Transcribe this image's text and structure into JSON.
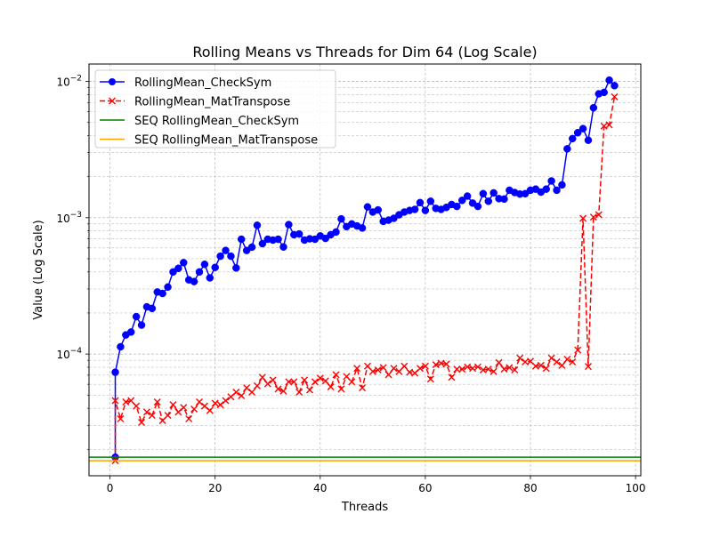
{
  "colors": {
    "checksym": "#0000ff",
    "mattranspose": "#ff0000",
    "seq_checksym": "#008000",
    "seq_mattranspose": "#ffa500",
    "grid": "#b0b0b0"
  },
  "chart_data": {
    "type": "line",
    "title": "Rolling Means vs Threads for Dim 64 (Log Scale)",
    "xlabel": "Threads",
    "ylabel": "Value (Log Scale)",
    "xlim": [
      -4,
      101
    ],
    "ylim": [
      1.28e-05,
      0.0134
    ],
    "yscale": "log",
    "grid": true,
    "legend_position": "upper-left",
    "x_ticks": [
      {
        "value": 0,
        "label": "0"
      },
      {
        "value": 20,
        "label": "20"
      },
      {
        "value": 40,
        "label": "40"
      },
      {
        "value": 60,
        "label": "60"
      },
      {
        "value": 80,
        "label": "80"
      },
      {
        "value": 100,
        "label": "100"
      }
    ],
    "y_ticks": [
      {
        "value": 0.0001,
        "base": "10",
        "exp": "−4"
      },
      {
        "value": 0.001,
        "base": "10",
        "exp": "−3"
      },
      {
        "value": 0.01,
        "base": "10",
        "exp": "−2"
      }
    ],
    "series": [
      {
        "name": "RollingMean_CheckSym",
        "color_key": "checksym",
        "style": "solid",
        "marker": "circle",
        "x": [
          1,
          1,
          2,
          3,
          4,
          5,
          6,
          7,
          8,
          9,
          10,
          11,
          12,
          13,
          14,
          15,
          16,
          17,
          18,
          19,
          20,
          21,
          22,
          23,
          24,
          25,
          26,
          27,
          28,
          29,
          30,
          31,
          32,
          33,
          34,
          35,
          36,
          37,
          38,
          39,
          40,
          41,
          42,
          43,
          44,
          45,
          46,
          47,
          48,
          49,
          50,
          51,
          52,
          53,
          54,
          55,
          56,
          57,
          58,
          59,
          60,
          61,
          62,
          63,
          64,
          65,
          66,
          67,
          68,
          69,
          70,
          71,
          72,
          73,
          74,
          75,
          76,
          77,
          78,
          79,
          80,
          81,
          82,
          83,
          84,
          85,
          86,
          87,
          88,
          89,
          90,
          91,
          92,
          93,
          94,
          95,
          96
        ],
        "y": [
          1.75e-05,
          7.35e-05,
          0.000113,
          0.000138,
          0.000145,
          0.000188,
          0.000163,
          0.000222,
          0.000216,
          0.000285,
          0.000278,
          0.00031,
          0.0004,
          0.000425,
          0.000468,
          0.00035,
          0.00034,
          0.0004,
          0.000455,
          0.000362,
          0.000432,
          0.000522,
          0.000575,
          0.000522,
          0.000428,
          0.000695,
          0.000575,
          0.000608,
          0.00088,
          0.000645,
          0.000695,
          0.000685,
          0.000695,
          0.00061,
          0.00089,
          0.00075,
          0.00076,
          0.000685,
          0.0007,
          0.000695,
          0.000735,
          0.000705,
          0.00075,
          0.000785,
          0.00098,
          0.00086,
          0.0009,
          0.00087,
          0.00084,
          0.0012,
          0.0011,
          0.00114,
          0.00094,
          0.00096,
          0.00099,
          0.00105,
          0.0011,
          0.00113,
          0.00115,
          0.00129,
          0.00113,
          0.00132,
          0.00117,
          0.00115,
          0.00119,
          0.00125,
          0.00121,
          0.00134,
          0.00144,
          0.00128,
          0.00121,
          0.0015,
          0.00132,
          0.00152,
          0.00138,
          0.00137,
          0.00159,
          0.00153,
          0.00149,
          0.0015,
          0.00159,
          0.00162,
          0.00154,
          0.00162,
          0.00186,
          0.00159,
          0.00174,
          0.0032,
          0.0038,
          0.0042,
          0.0045,
          0.0037,
          0.0064,
          0.0081,
          0.0083,
          0.0102,
          0.0093
        ]
      },
      {
        "name": "RollingMean_MatTranspose",
        "color_key": "mattranspose",
        "style": "dashed",
        "marker": "x",
        "x": [
          1,
          1,
          2,
          3,
          4,
          5,
          6,
          7,
          8,
          9,
          10,
          11,
          12,
          13,
          14,
          15,
          16,
          17,
          18,
          19,
          20,
          21,
          22,
          23,
          24,
          25,
          26,
          27,
          28,
          29,
          30,
          31,
          32,
          33,
          34,
          35,
          36,
          37,
          38,
          39,
          40,
          41,
          42,
          43,
          44,
          45,
          46,
          47,
          48,
          49,
          50,
          51,
          52,
          53,
          54,
          55,
          56,
          57,
          58,
          59,
          60,
          61,
          62,
          63,
          64,
          65,
          66,
          67,
          68,
          69,
          70,
          71,
          72,
          73,
          74,
          75,
          76,
          77,
          78,
          79,
          80,
          81,
          82,
          83,
          84,
          85,
          86,
          87,
          88,
          89,
          90,
          91,
          92,
          93,
          94,
          95,
          96
        ],
        "y": [
          1.65e-05,
          4.55e-05,
          3.35e-05,
          4.45e-05,
          4.55e-05,
          4.15e-05,
          3.15e-05,
          3.75e-05,
          3.55e-05,
          4.45e-05,
          3.25e-05,
          3.55e-05,
          4.25e-05,
          3.75e-05,
          4.05e-05,
          3.35e-05,
          3.95e-05,
          4.45e-05,
          4.15e-05,
          3.85e-05,
          4.35e-05,
          4.25e-05,
          4.55e-05,
          4.85e-05,
          5.25e-05,
          4.95e-05,
          5.65e-05,
          5.25e-05,
          5.85e-05,
          6.75e-05,
          6.05e-05,
          6.45e-05,
          5.55e-05,
          5.35e-05,
          6.25e-05,
          6.25e-05,
          5.25e-05,
          6.45e-05,
          5.45e-05,
          6.25e-05,
          6.65e-05,
          6.35e-05,
          5.75e-05,
          7.05e-05,
          5.55e-05,
          6.85e-05,
          6.25e-05,
          7.85e-05,
          5.65e-05,
          8.15e-05,
          7.45e-05,
          7.65e-05,
          7.95e-05,
          7.05e-05,
          7.85e-05,
          7.45e-05,
          8.15e-05,
          7.35e-05,
          7.25e-05,
          7.85e-05,
          8.15e-05,
          6.55e-05,
          8.35e-05,
          8.55e-05,
          8.45e-05,
          6.75e-05,
          7.75e-05,
          7.75e-05,
          8.05e-05,
          7.85e-05,
          8.05e-05,
          7.65e-05,
          7.75e-05,
          7.45e-05,
          8.65e-05,
          7.75e-05,
          7.95e-05,
          7.65e-05,
          9.35e-05,
          8.75e-05,
          8.85e-05,
          8.15e-05,
          8.25e-05,
          7.85e-05,
          9.35e-05,
          8.75e-05,
          8.25e-05,
          9.15e-05,
          8.75e-05,
          0.000107,
          0.00099,
          8.1e-05,
          0.00101,
          0.00105,
          0.0047,
          0.0048,
          0.0077
        ]
      },
      {
        "name": "SEQ RollingMean_CheckSym",
        "color_key": "seq_checksym",
        "style": "hline",
        "marker": "none",
        "y": 1.75e-05
      },
      {
        "name": "SEQ RollingMean_MatTranspose",
        "color_key": "seq_mattranspose",
        "style": "hline",
        "marker": "none",
        "y": 1.65e-05
      }
    ]
  }
}
